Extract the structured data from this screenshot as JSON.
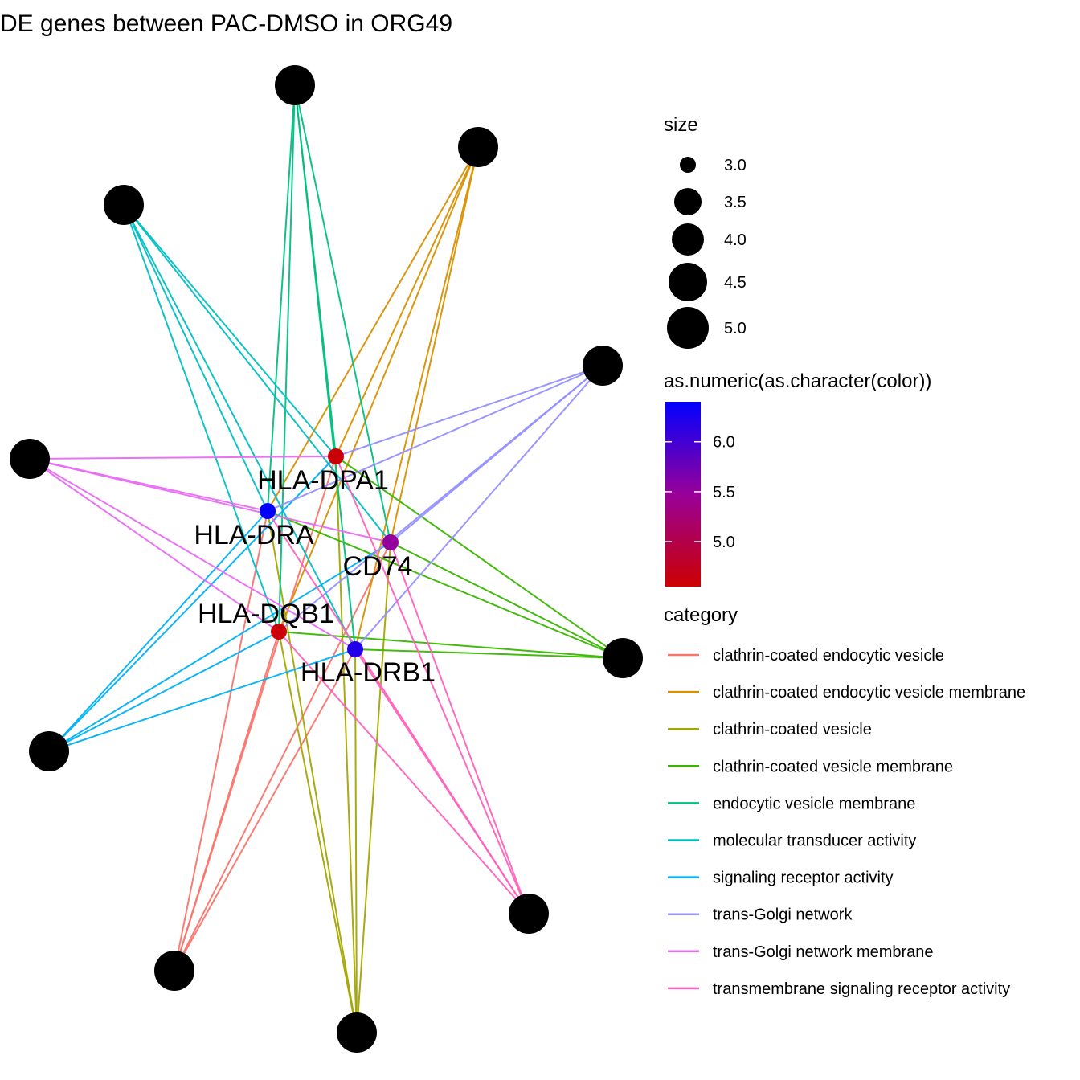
{
  "chart_data": {
    "type": "cnetplot",
    "title": "DE genes between PAC-DMSO in ORG49",
    "genes": [
      {
        "name": "HLA-DPA1",
        "color": 4.6
      },
      {
        "name": "HLA-DRA",
        "color": 6.4
      },
      {
        "name": "CD74",
        "color": 5.5
      },
      {
        "name": "HLA-DQB1",
        "color": 4.6
      },
      {
        "name": "HLA-DRB1",
        "color": 6.2
      }
    ],
    "categories": [
      {
        "name": "clathrin-coated endocytic vesicle",
        "color": "#F8766D",
        "size": 5
      },
      {
        "name": "clathrin-coated endocytic vesicle membrane",
        "color": "#D89000",
        "size": 5
      },
      {
        "name": "clathrin-coated vesicle",
        "color": "#A3A500",
        "size": 5
      },
      {
        "name": "clathrin-coated vesicle membrane",
        "color": "#39B600",
        "size": 5
      },
      {
        "name": "endocytic vesicle membrane",
        "color": "#00BF7D",
        "size": 5
      },
      {
        "name": "molecular transducer activity",
        "color": "#00BFC4",
        "size": 5
      },
      {
        "name": "signaling receptor activity",
        "color": "#00B0F6",
        "size": 5
      },
      {
        "name": "trans-Golgi network",
        "color": "#9590FF",
        "size": 5
      },
      {
        "name": "trans-Golgi network membrane",
        "color": "#E76BF3",
        "size": 5
      },
      {
        "name": "transmembrane signaling receptor activity",
        "color": "#FF62BC",
        "size": 5
      }
    ],
    "edges": [
      [
        "HLA-DPA1",
        "clathrin-coated endocytic vesicle"
      ],
      [
        "HLA-DRA",
        "clathrin-coated endocytic vesicle"
      ],
      [
        "CD74",
        "clathrin-coated endocytic vesicle"
      ],
      [
        "HLA-DQB1",
        "clathrin-coated endocytic vesicle"
      ],
      [
        "HLA-DRB1",
        "clathrin-coated endocytic vesicle"
      ],
      [
        "HLA-DPA1",
        "clathrin-coated endocytic vesicle membrane"
      ],
      [
        "HLA-DRA",
        "clathrin-coated endocytic vesicle membrane"
      ],
      [
        "CD74",
        "clathrin-coated endocytic vesicle membrane"
      ],
      [
        "HLA-DQB1",
        "clathrin-coated endocytic vesicle membrane"
      ],
      [
        "HLA-DRB1",
        "clathrin-coated endocytic vesicle membrane"
      ],
      [
        "HLA-DPA1",
        "clathrin-coated vesicle"
      ],
      [
        "HLA-DRA",
        "clathrin-coated vesicle"
      ],
      [
        "CD74",
        "clathrin-coated vesicle"
      ],
      [
        "HLA-DQB1",
        "clathrin-coated vesicle"
      ],
      [
        "HLA-DRB1",
        "clathrin-coated vesicle"
      ],
      [
        "HLA-DPA1",
        "clathrin-coated vesicle membrane"
      ],
      [
        "HLA-DRA",
        "clathrin-coated vesicle membrane"
      ],
      [
        "CD74",
        "clathrin-coated vesicle membrane"
      ],
      [
        "HLA-DQB1",
        "clathrin-coated vesicle membrane"
      ],
      [
        "HLA-DRB1",
        "clathrin-coated vesicle membrane"
      ],
      [
        "HLA-DPA1",
        "endocytic vesicle membrane"
      ],
      [
        "HLA-DRA",
        "endocytic vesicle membrane"
      ],
      [
        "CD74",
        "endocytic vesicle membrane"
      ],
      [
        "HLA-DQB1",
        "endocytic vesicle membrane"
      ],
      [
        "HLA-DRB1",
        "endocytic vesicle membrane"
      ],
      [
        "HLA-DPA1",
        "molecular transducer activity"
      ],
      [
        "HLA-DRA",
        "molecular transducer activity"
      ],
      [
        "CD74",
        "molecular transducer activity"
      ],
      [
        "HLA-DQB1",
        "molecular transducer activity"
      ],
      [
        "HLA-DRB1",
        "molecular transducer activity"
      ],
      [
        "HLA-DPA1",
        "signaling receptor activity"
      ],
      [
        "HLA-DRA",
        "signaling receptor activity"
      ],
      [
        "CD74",
        "signaling receptor activity"
      ],
      [
        "HLA-DQB1",
        "signaling receptor activity"
      ],
      [
        "HLA-DRB1",
        "signaling receptor activity"
      ],
      [
        "HLA-DPA1",
        "trans-Golgi network"
      ],
      [
        "HLA-DRA",
        "trans-Golgi network"
      ],
      [
        "CD74",
        "trans-Golgi network"
      ],
      [
        "HLA-DQB1",
        "trans-Golgi network"
      ],
      [
        "HLA-DRB1",
        "trans-Golgi network"
      ],
      [
        "HLA-DPA1",
        "trans-Golgi network membrane"
      ],
      [
        "HLA-DRA",
        "trans-Golgi network membrane"
      ],
      [
        "CD74",
        "trans-Golgi network membrane"
      ],
      [
        "HLA-DQB1",
        "trans-Golgi network membrane"
      ],
      [
        "HLA-DRB1",
        "trans-Golgi network membrane"
      ],
      [
        "HLA-DPA1",
        "transmembrane signaling receptor activity"
      ],
      [
        "HLA-DRA",
        "transmembrane signaling receptor activity"
      ],
      [
        "CD74",
        "transmembrane signaling receptor activity"
      ],
      [
        "HLA-DQB1",
        "transmembrane signaling receptor activity"
      ],
      [
        "HLA-DRB1",
        "transmembrane signaling receptor activity"
      ]
    ],
    "legend": {
      "size": {
        "title": "size",
        "values": [
          "3.0",
          "3.5",
          "4.0",
          "4.5",
          "5.0"
        ]
      },
      "color": {
        "title": "as.numeric(as.character(color))",
        "ticks": [
          "6.0",
          "5.5",
          "5.0"
        ],
        "range": [
          4.55,
          6.4
        ],
        "low": "#CC0000",
        "mid": "#990099",
        "high": "#0000FF"
      },
      "category": {
        "title": "category"
      }
    }
  }
}
